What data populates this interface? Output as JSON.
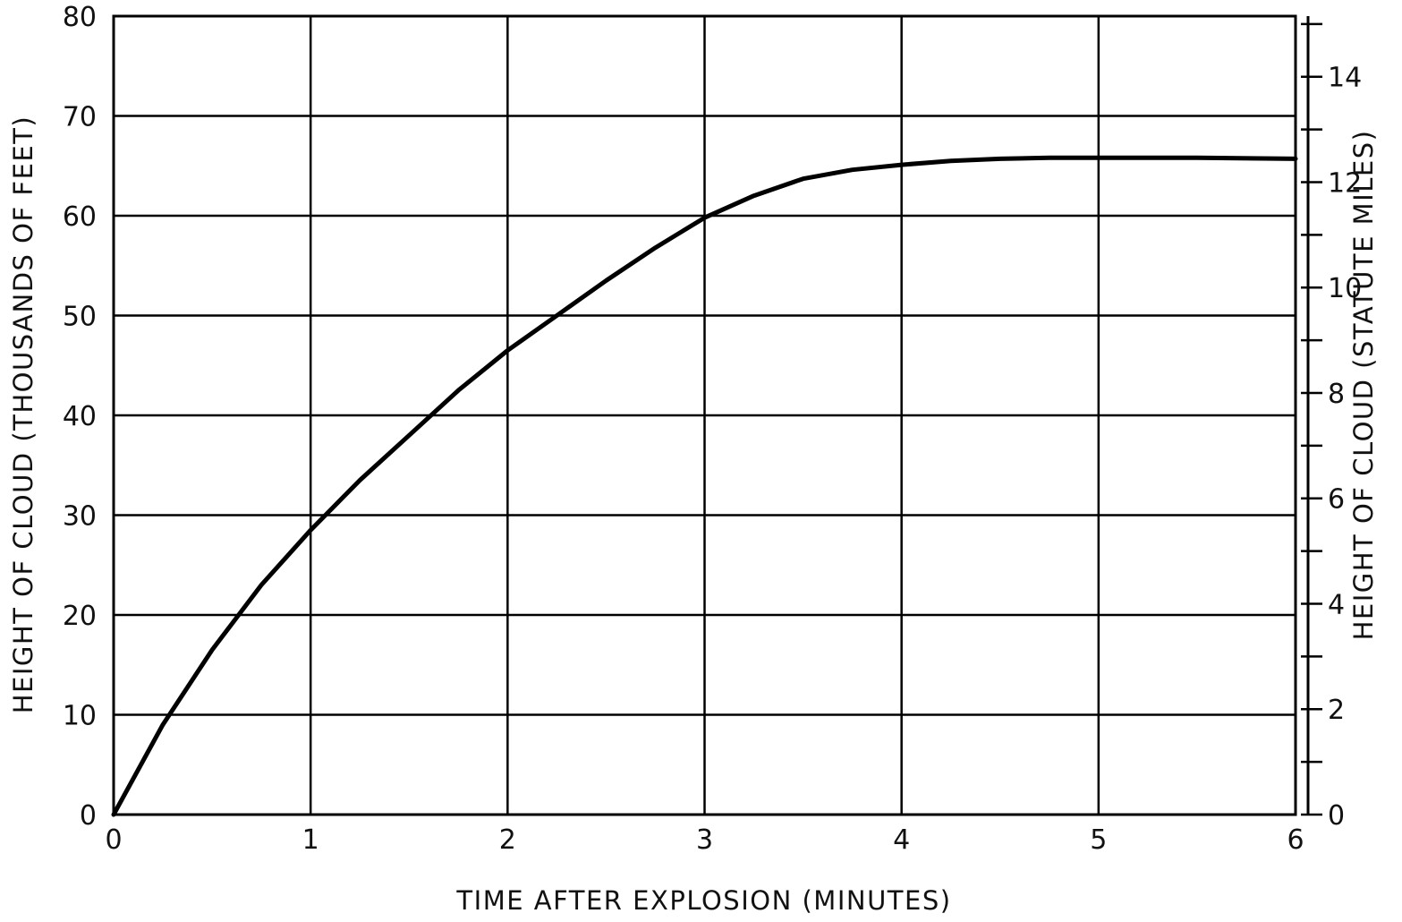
{
  "chart_data": {
    "type": "line",
    "title": "",
    "xlabel": "TIME AFTER EXPLOSION (MINUTES)",
    "ylabel": "HEIGHT OF CLOUD (THOUSANDS OF FEET)",
    "y2label": "HEIGHT OF CLOUD (STATUTE MILES)",
    "xlim": [
      0,
      6
    ],
    "ylim": [
      0,
      80
    ],
    "y2lim": [
      0,
      15.15
    ],
    "xticks": [
      "0",
      "1",
      "2",
      "3",
      "4",
      "5",
      "6"
    ],
    "yticks": [
      "0",
      "10",
      "20",
      "30",
      "40",
      "50",
      "60",
      "70",
      "80"
    ],
    "y2ticks": [
      "0",
      "2",
      "4",
      "6",
      "8",
      "10",
      "12",
      "14"
    ],
    "grid": true,
    "legend": "none",
    "series": [
      {
        "x": [
          0,
          0.25,
          0.5,
          0.75,
          1,
          1.25,
          1.5,
          1.75,
          2,
          2.25,
          2.5,
          2.75,
          3,
          3.25,
          3.5,
          3.75,
          4,
          4.25,
          4.5,
          4.75,
          5,
          5.5,
          6
        ],
        "values": [
          0,
          9,
          16.5,
          23,
          28.5,
          33.5,
          38,
          42.5,
          46.5,
          50,
          53.5,
          56.8,
          59.8,
          62,
          63.7,
          64.6,
          65.1,
          65.5,
          65.7,
          65.8,
          65.8,
          65.8,
          65.7
        ],
        "color": "#000000"
      }
    ]
  }
}
